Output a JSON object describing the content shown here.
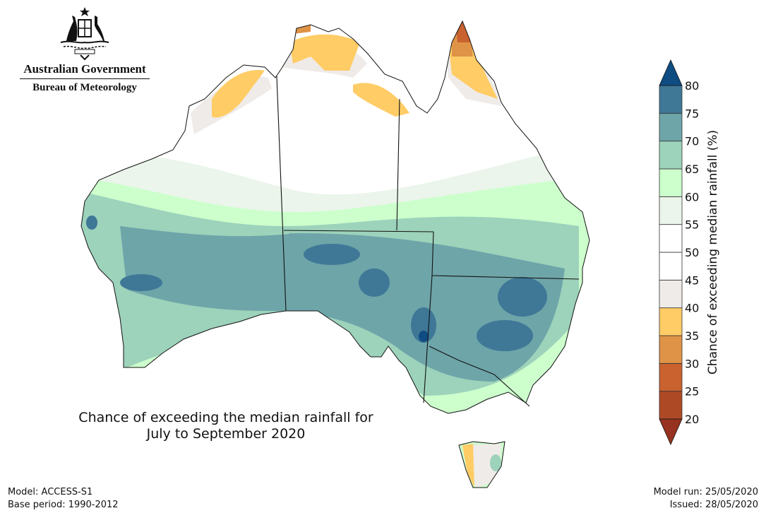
{
  "logo": {
    "line1": "Australian Government",
    "line2": "Bureau of Meteorology",
    "emblem": "commonwealth-coat-of-arms"
  },
  "title": {
    "line1": "Chance of exceeding the median rainfall for",
    "line2": "July to September 2020"
  },
  "footer": {
    "model": "Model: ACCESS-S1",
    "base_period": "Base period: 1990-2012",
    "model_run": "Model run: 25/05/2020",
    "issued": "Issued: 28/05/2020"
  },
  "legend": {
    "label": "Chance of exceeding median rainfall (%)",
    "ticks": [
      "20",
      "25",
      "30",
      "35",
      "40",
      "45",
      "50",
      "55",
      "60",
      "65",
      "70",
      "75",
      "80"
    ],
    "colors": [
      "#ad4a25",
      "#c9622f",
      "#df9347",
      "#ffcc66",
      "#efebe8",
      "#ffffff",
      "#ffffff",
      "#ebf5eb",
      "#ccffcc",
      "#9dd2bb",
      "#6ea5a9",
      "#3f7797"
    ],
    "under_color": "#973220",
    "over_color": "#0f4c81"
  }
}
